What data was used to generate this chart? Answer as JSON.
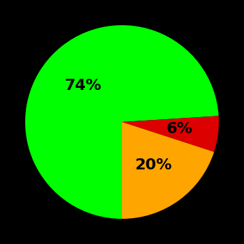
{
  "slices": [
    74,
    6,
    20
  ],
  "colors": [
    "#00ff00",
    "#dd0000",
    "#ffa500"
  ],
  "labels": [
    "74%",
    "6%",
    "20%"
  ],
  "label_radii": [
    0.55,
    0.6,
    0.55
  ],
  "background_color": "#000000",
  "text_color": "#000000",
  "startangle": 270,
  "counterclock": false,
  "figsize": [
    3.5,
    3.5
  ],
  "dpi": 100,
  "fontsize": 16
}
